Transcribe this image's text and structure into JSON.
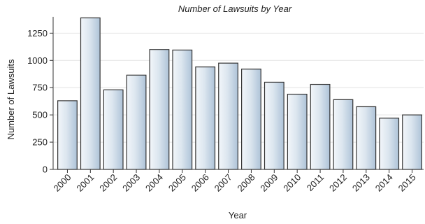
{
  "chart_data": {
    "type": "bar",
    "title": "Number of Lawsuits by Year",
    "xlabel": "Year",
    "ylabel": "Number of Lawsuits",
    "categories": [
      "2000",
      "2001",
      "2002",
      "2003",
      "2004",
      "2005",
      "2006",
      "2007",
      "2008",
      "2009",
      "2010",
      "2011",
      "2012",
      "2013",
      "2014",
      "2015"
    ],
    "values": [
      630,
      1390,
      730,
      865,
      1100,
      1095,
      940,
      975,
      920,
      800,
      690,
      780,
      640,
      575,
      470,
      500
    ],
    "ylim": [
      0,
      1400
    ],
    "yticks": [
      0,
      250,
      500,
      750,
      1000,
      1250
    ],
    "grid": true,
    "colors": {
      "bar_light": "#f2f6fa",
      "bar_dark": "#aec3d8",
      "bar_edge": "#333333"
    }
  }
}
